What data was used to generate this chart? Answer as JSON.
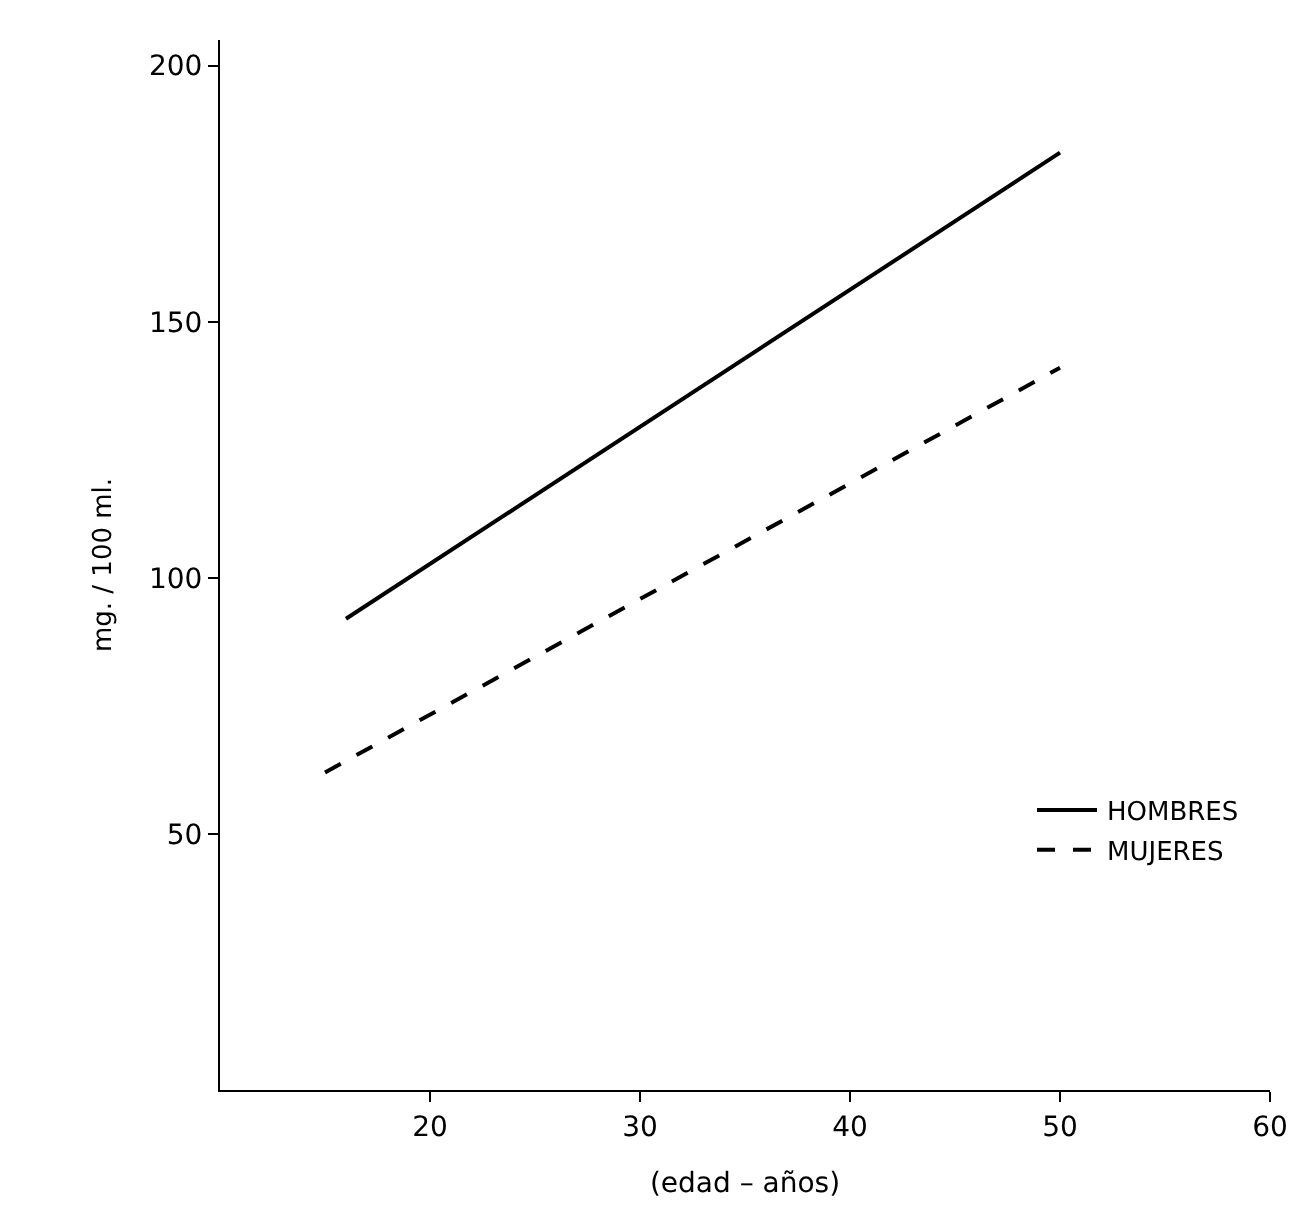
{
  "chart_data": {
    "type": "line",
    "xlabel": "(edad – años)",
    "ylabel": "mg. / 100 ml.",
    "series": [
      {
        "name": "HOMBRES",
        "color": "#000000",
        "x": [
          16,
          50
        ],
        "values": [
          92,
          183
        ],
        "line_style": "solid"
      },
      {
        "name": "MUJERES",
        "color": "#000000",
        "x": [
          15,
          50
        ],
        "values": [
          62,
          141
        ],
        "line_style": "dashed"
      }
    ],
    "xlim": [
      10,
      60
    ],
    "xticks": [
      20,
      30,
      40,
      50,
      60
    ],
    "ylim": [
      0,
      205
    ],
    "yticks": [
      50,
      100,
      150,
      200
    ],
    "legend": "bottom right",
    "marker": "none"
  }
}
